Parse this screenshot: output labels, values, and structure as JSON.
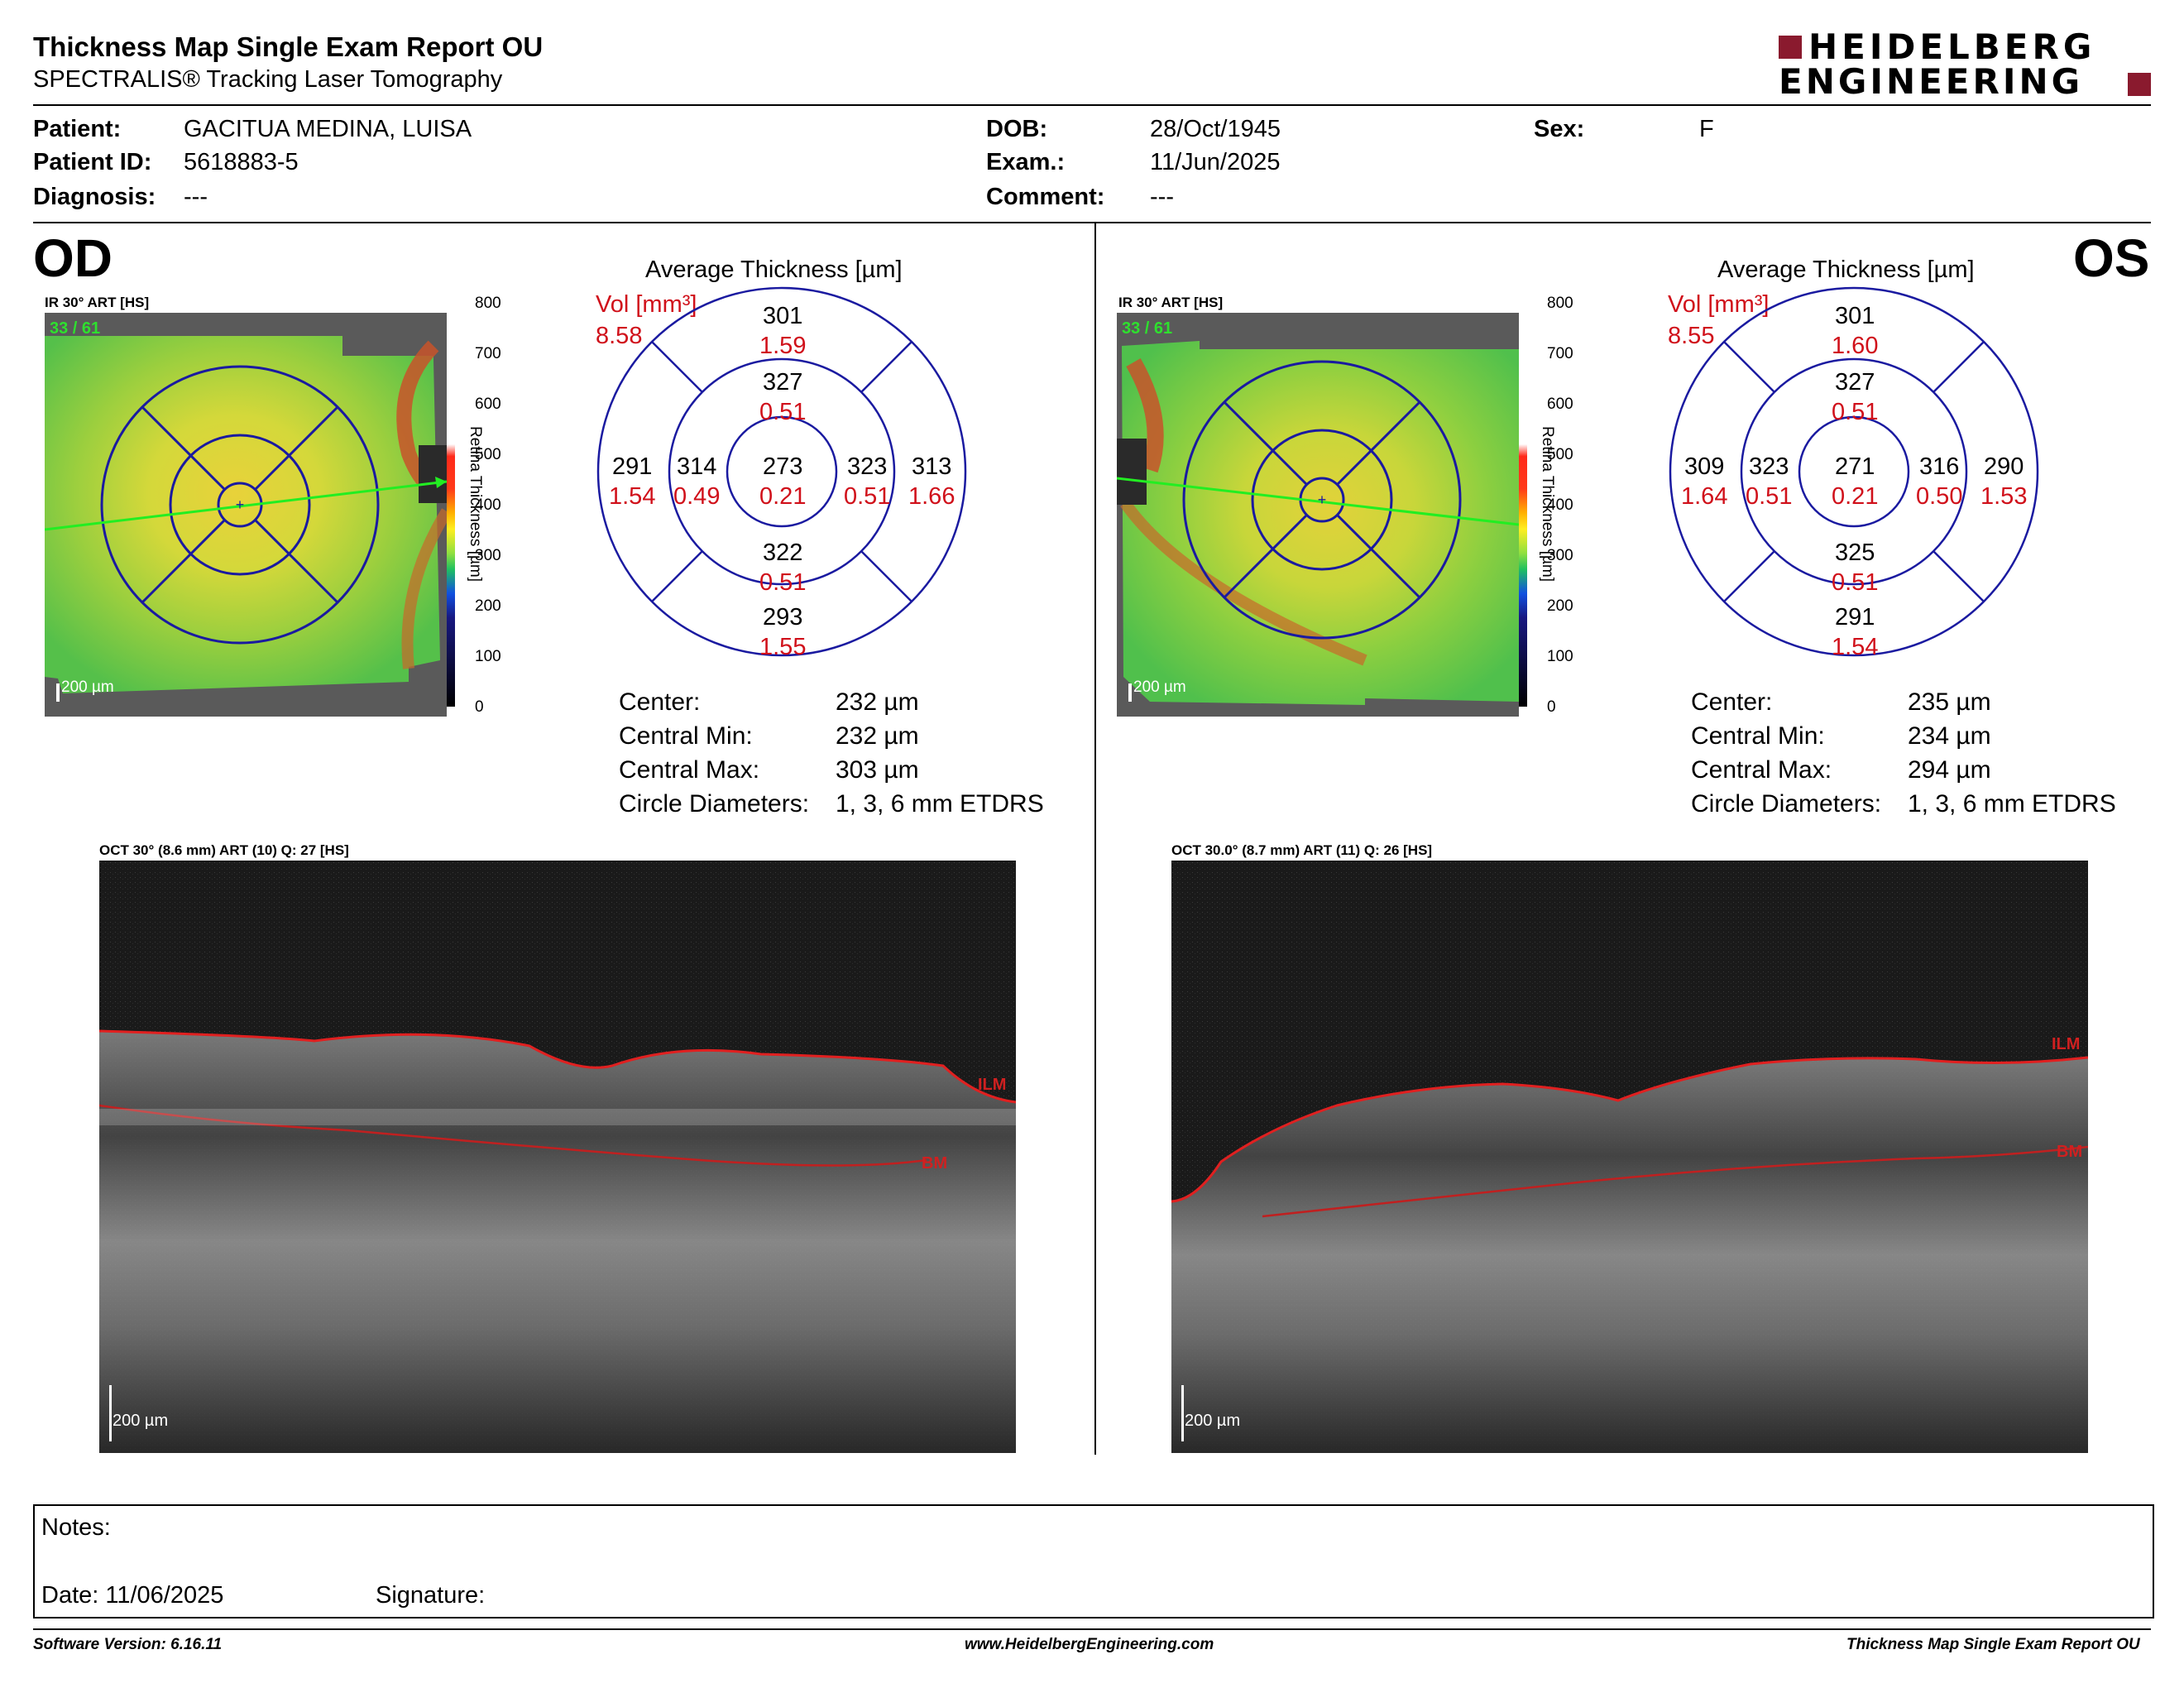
{
  "header": {
    "title": "Thickness Map Single Exam Report OU",
    "subtitle": "SPECTRALIS® Tracking Laser Tomography",
    "logo_line1": "HEIDELBERG",
    "logo_line2": "ENGINEERING"
  },
  "patient": {
    "patient_label": "Patient:",
    "patient_value": "GACITUA MEDINA, LUISA",
    "id_label": "Patient ID:",
    "id_value": "5618883-5",
    "diagnosis_label": "Diagnosis:",
    "diagnosis_value": "---",
    "dob_label": "DOB:",
    "dob_value": "28/Oct/1945",
    "exam_label": "Exam.:",
    "exam_value": "11/Jun/2025",
    "comment_label": "Comment:",
    "comment_value": "---",
    "sex_label": "Sex:",
    "sex_value": "F"
  },
  "colorbar": {
    "ticks": [
      "800",
      "700",
      "600",
      "500",
      "400",
      "300",
      "200",
      "100",
      "0"
    ],
    "label": "Retina Thickness [µm]"
  },
  "od": {
    "eye": "OD",
    "ir_label": "IR 30° ART [HS]",
    "frames": "33 / 61",
    "scale": "200 µm",
    "grid_title": "Average Thickness [µm]",
    "vol_label": "Vol [mm³]",
    "vol_total": "8.58",
    "sectors": {
      "outer_sup": {
        "t": "301",
        "v": "1.59"
      },
      "inner_sup": {
        "t": "327",
        "v": "0.51"
      },
      "outer_nasal_left": {
        "t": "291",
        "v": "1.54"
      },
      "inner_left": {
        "t": "314",
        "v": "0.49"
      },
      "center": {
        "t": "273",
        "v": "0.21"
      },
      "inner_right": {
        "t": "323",
        "v": "0.51"
      },
      "outer_right": {
        "t": "313",
        "v": "1.66"
      },
      "inner_inf": {
        "t": "322",
        "v": "0.51"
      },
      "outer_inf": {
        "t": "293",
        "v": "1.55"
      }
    },
    "stats": [
      {
        "label": "Center:",
        "value": "232 µm"
      },
      {
        "label": "Central Min:",
        "value": "232 µm"
      },
      {
        "label": "Central Max:",
        "value": "303 µm"
      },
      {
        "label": "Circle Diameters:",
        "value": "1, 3, 6 mm ETDRS"
      }
    ],
    "oct_label": "OCT 30° (8.6 mm) ART (10) Q: 27 [HS]",
    "oct_scale": "200 µm",
    "ilm": "ILM",
    "bm": "BM"
  },
  "os": {
    "eye": "OS",
    "ir_label": "IR 30° ART [HS]",
    "frames": "33 / 61",
    "scale": "200 µm",
    "grid_title": "Average Thickness [µm]",
    "vol_label": "Vol [mm³]",
    "vol_total": "8.55",
    "sectors": {
      "outer_sup": {
        "t": "301",
        "v": "1.60"
      },
      "inner_sup": {
        "t": "327",
        "v": "0.51"
      },
      "outer_nasal_left": {
        "t": "309",
        "v": "1.64"
      },
      "inner_left": {
        "t": "323",
        "v": "0.51"
      },
      "center": {
        "t": "271",
        "v": "0.21"
      },
      "inner_right": {
        "t": "316",
        "v": "0.50"
      },
      "outer_right": {
        "t": "290",
        "v": "1.53"
      },
      "inner_inf": {
        "t": "325",
        "v": "0.51"
      },
      "outer_inf": {
        "t": "291",
        "v": "1.54"
      }
    },
    "stats": [
      {
        "label": "Center:",
        "value": "235 µm"
      },
      {
        "label": "Central Min:",
        "value": "234 µm"
      },
      {
        "label": "Central Max:",
        "value": "294 µm"
      },
      {
        "label": "Circle Diameters:",
        "value": "1, 3, 6 mm ETDRS"
      }
    ],
    "oct_label": "OCT 30.0° (8.7 mm) ART (11) Q: 26 [HS]",
    "oct_scale": "200 µm",
    "ilm": "ILM",
    "bm": "BM"
  },
  "notes": {
    "notes_label": "Notes:",
    "date_label": "Date: 11/06/2025",
    "signature_label": "Signature:"
  },
  "footer": {
    "software": "Software Version: 6.16.11",
    "website": "www.HeidelbergEngineering.com",
    "report": "Thickness Map Single Exam Report OU"
  },
  "colors": {
    "sector_line": "#1a1aa0",
    "volume_text": "#d0101a",
    "logo": "#8a1a2e",
    "frames": "#2ee02e"
  }
}
